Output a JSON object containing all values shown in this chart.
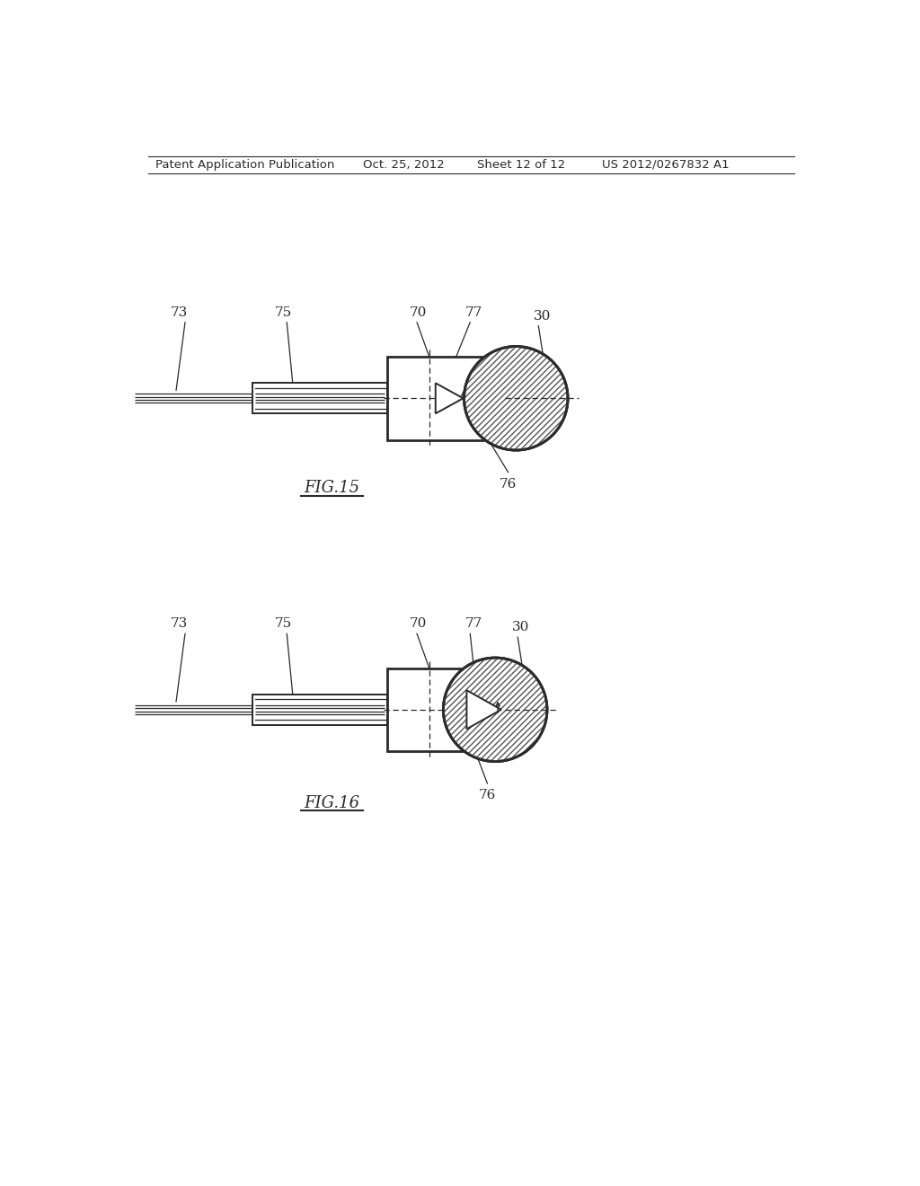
{
  "background_color": "#ffffff",
  "header_text": "Patent Application Publication",
  "header_date": "Oct. 25, 2012",
  "header_sheet": "Sheet 12 of 12",
  "header_patent": "US 2012/0267832 A1",
  "fig15_label": "FIG.15",
  "fig16_label": "FIG.16",
  "line_color": "#2a2a2a",
  "fig_label_fontsize": 13,
  "header_fontsize": 9.5,
  "annotation_fontsize": 11
}
